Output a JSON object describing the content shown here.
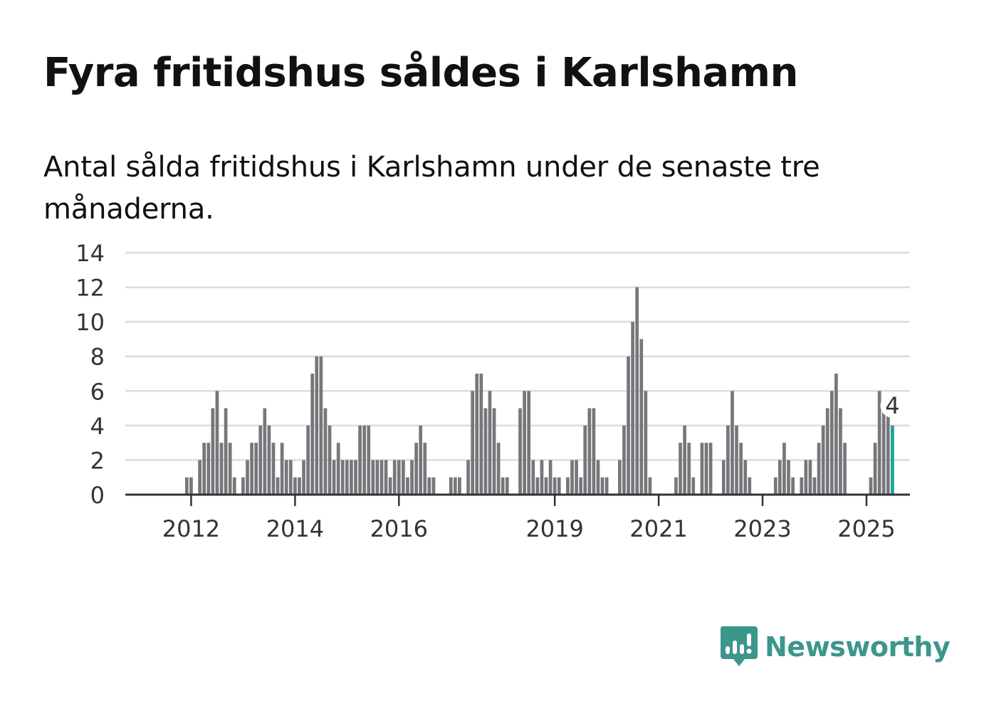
{
  "title": "Fyra fritidshus såldes i Karlshamn",
  "subtitle": "Antal sålda fritidshus i Karlshamn under de senaste tre månaderna.",
  "brand": {
    "name": "Newsworthy",
    "color": "#3b968c"
  },
  "chart_data": {
    "type": "bar",
    "title": "",
    "xlabel": "",
    "ylabel": "",
    "ylim": [
      0,
      14
    ],
    "y_ticks": [
      0,
      2,
      4,
      6,
      8,
      10,
      12,
      14
    ],
    "x_ticks": [
      "2012",
      "2014",
      "2016",
      "2019",
      "2021",
      "2023",
      "2025"
    ],
    "grid": true,
    "bar_color": "#76767b",
    "highlight_color": "#17a29a",
    "start": "2011-03",
    "frequency": "monthly",
    "values": [
      0,
      0,
      0,
      0,
      0,
      0,
      0,
      0,
      0,
      1,
      1,
      0,
      2,
      3,
      3,
      5,
      6,
      3,
      5,
      3,
      1,
      0,
      1,
      2,
      3,
      3,
      4,
      5,
      4,
      3,
      1,
      3,
      2,
      2,
      1,
      1,
      2,
      4,
      7,
      8,
      8,
      5,
      4,
      2,
      3,
      2,
      2,
      2,
      2,
      4,
      4,
      4,
      2,
      2,
      2,
      2,
      1,
      2,
      2,
      2,
      1,
      2,
      3,
      4,
      3,
      1,
      1,
      0,
      0,
      0,
      1,
      1,
      1,
      0,
      2,
      6,
      7,
      7,
      5,
      6,
      5,
      3,
      1,
      1,
      0,
      0,
      5,
      6,
      6,
      2,
      1,
      2,
      1,
      2,
      1,
      1,
      0,
      1,
      2,
      2,
      1,
      4,
      5,
      5,
      2,
      1,
      1,
      0,
      0,
      2,
      4,
      8,
      10,
      12,
      9,
      6,
      1,
      0,
      0,
      0,
      0,
      0,
      1,
      3,
      4,
      3,
      1,
      0,
      3,
      3,
      3,
      0,
      0,
      2,
      4,
      6,
      4,
      3,
      2,
      1,
      0,
      0,
      0,
      0,
      0,
      1,
      2,
      3,
      2,
      1,
      0,
      1,
      2,
      2,
      1,
      3,
      4,
      5,
      6,
      7,
      5,
      3,
      0,
      0,
      0,
      0,
      0,
      1,
      3,
      6,
      5,
      5,
      4
    ],
    "highlight": {
      "label": "4",
      "value": 4,
      "period": "latest"
    }
  }
}
